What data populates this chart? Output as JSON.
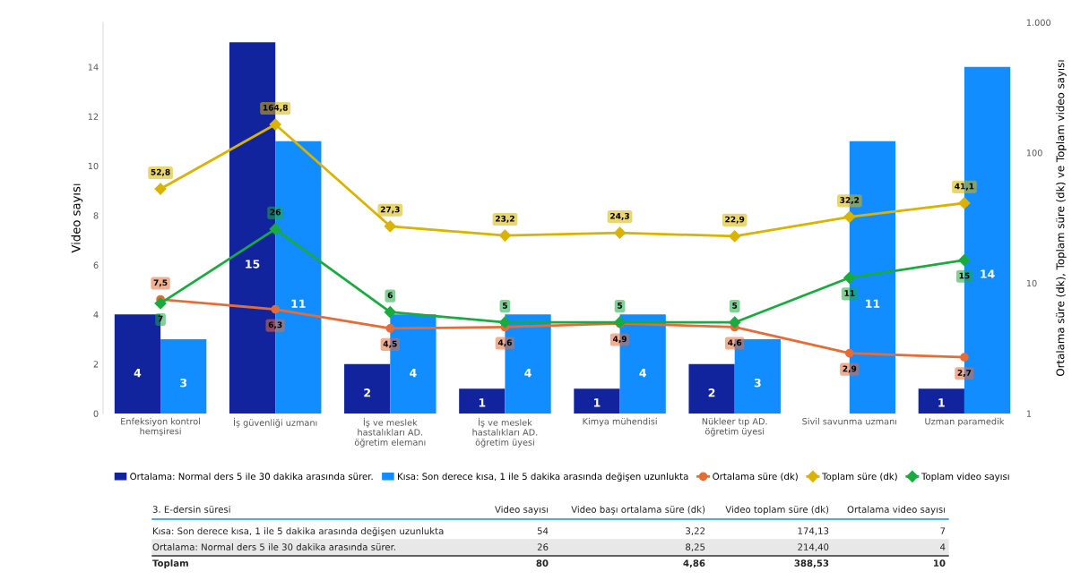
{
  "chart_data": {
    "type": "bar",
    "ylabel": "Video sayısı",
    "y2label": "Ortalama süre (dk), Toplam süre (dk) ve Toplam video sayısı",
    "categories": [
      "Enfeksiyon kontrol hemşiresi",
      "İş güvenliği uzmanı",
      "İş ve meslek hastalıkları AD. öğretim elemanı",
      "İş ve meslek hastalıkları AD. öğretim üyesi",
      "Kimya mühendisi",
      "Nükleer tıp AD. öğretim üyesi",
      "Sivil savunma uzmanı",
      "Uzman paramedik"
    ],
    "series": [
      {
        "name": "Ortalama: Normal ders 5 ile 30 dakika arasında sürer.",
        "color": "#12239e",
        "values": [
          4,
          15,
          2,
          1,
          1,
          2,
          null,
          1
        ],
        "value_labels": [
          "4",
          "15",
          "2",
          "1",
          "1",
          "2",
          null,
          "1"
        ]
      },
      {
        "name": "Kısa: Son derece kısa, 1 ile 5 dakika arasında değişen uzunlukta",
        "color": "#118dff",
        "values": [
          3,
          11,
          4,
          4,
          4,
          3,
          11,
          14
        ],
        "value_labels": [
          "3",
          "11",
          "4",
          "4",
          "4",
          "3",
          "11",
          "14"
        ]
      },
      {
        "name": "Ortalama süre (dk)",
        "type": "line",
        "axis": "y2",
        "marker": "circle",
        "color": "#e66c37",
        "values": [
          7.5,
          6.3,
          4.5,
          4.6,
          4.9,
          4.6,
          2.9,
          2.7
        ],
        "value_labels": [
          "7,5",
          "6,3",
          "4,5",
          "4,6",
          "4,9",
          "4,6",
          "2,9",
          "2,7"
        ]
      },
      {
        "name": "Toplam süre (dk)",
        "type": "line",
        "axis": "y2",
        "marker": "diamond",
        "color": "#d9b300",
        "values": [
          52.8,
          164.8,
          27.3,
          23.2,
          24.3,
          22.9,
          32.2,
          41.1
        ],
        "value_labels": [
          "52,8",
          "164,8",
          "27,3",
          "23,2",
          "24,3",
          "22,9",
          "32,2",
          "41,1"
        ]
      },
      {
        "name": "Toplam video sayısı",
        "type": "line",
        "axis": "y2",
        "marker": "diamond",
        "color": "#1aab40",
        "values": [
          7,
          26,
          6,
          5,
          5,
          5,
          11,
          15
        ],
        "value_labels": [
          "7",
          "26",
          "6",
          "5",
          "5",
          "5",
          "11",
          "15"
        ]
      }
    ],
    "ylim": [
      0,
      15.8
    ],
    "yticks": [
      0,
      2,
      4,
      6,
      8,
      10,
      12,
      14
    ],
    "log": "y2",
    "y2lim": [
      1,
      1000
    ],
    "y2ticks": [
      1,
      10,
      100,
      {
        "value": 1000,
        "label": "1.000"
      }
    ],
    "legend": "bottom",
    "grid": false,
    "annotations": [
      "3. E-dersin süresi",
      "Video sayısı",
      "Video başı ortalama süre (dk)",
      "Video toplam süre (dk)",
      "Ortalama video sayısı",
      "Kısa: Son derece kısa, 1 ile 5 dakika arasında değişen uzunlukta",
      "54",
      "3,22",
      "174,13",
      "7",
      "Ortalama: Normal ders 5 ile 30 dakika arasında sürer.",
      "26",
      "8,25",
      "214,40",
      "4",
      "Toplam",
      "80",
      "4,86",
      "388,53",
      "10"
    ]
  }
}
